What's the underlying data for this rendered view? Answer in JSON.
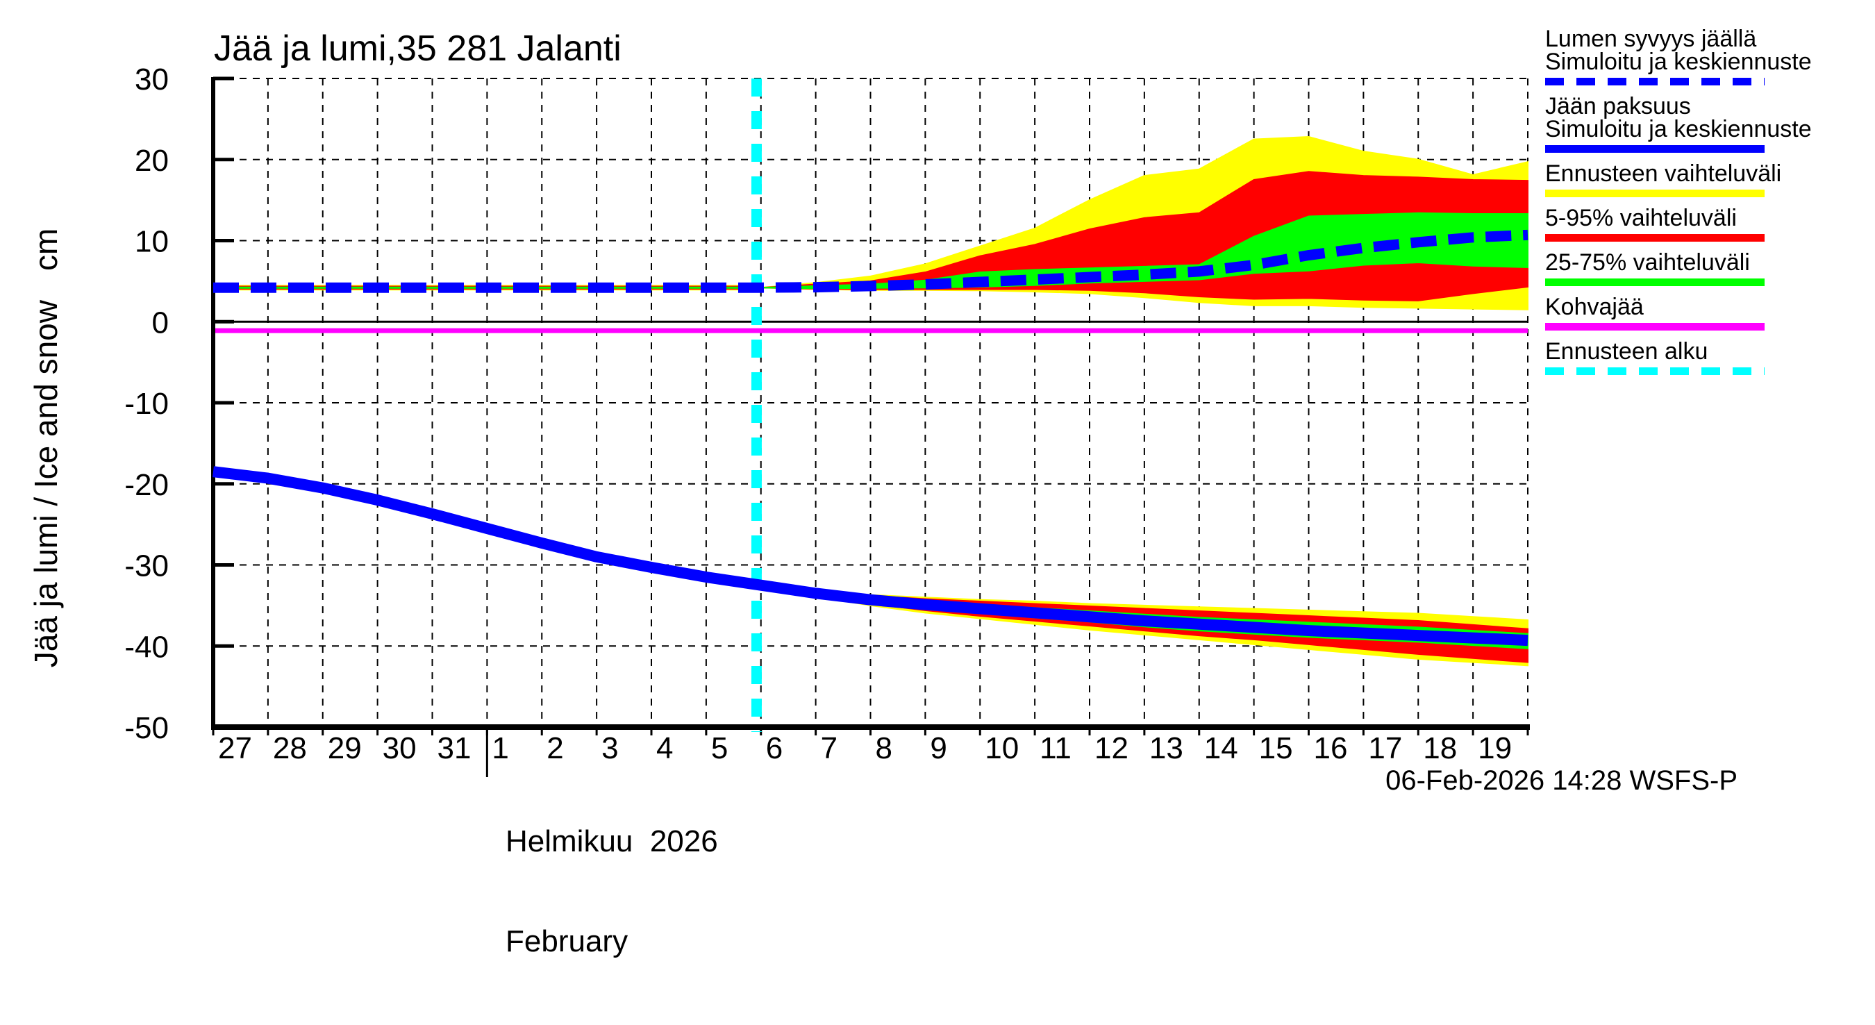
{
  "chart_data": {
    "type": "line",
    "title": "Jää ja lumi,35 281 Jalanti",
    "ylabel": "Jää ja lumi / Ice and snow",
    "y_unit": "cm",
    "ylim": [
      -50,
      30
    ],
    "y_ticks": [
      30,
      20,
      10,
      0,
      -10,
      -20,
      -30,
      -40,
      -50
    ],
    "x_day_labels": [
      "27",
      "28",
      "29",
      "30",
      "31",
      "1",
      "2",
      "3",
      "4",
      "5",
      "6",
      "7",
      "8",
      "9",
      "10",
      "11",
      "12",
      "13",
      "14",
      "15",
      "16",
      "17",
      "18",
      "19"
    ],
    "x_total_days": 24,
    "month_boundary_index": 5,
    "month_label_fi": "Helmikuu  2026",
    "month_label_en": "February",
    "forecast_start_t": 9.92,
    "timestamp": "06-Feb-2026 14:28 WSFS-P",
    "grid": true,
    "legend_position": "right-outside",
    "colors": {
      "median_line": "#0000ff",
      "range_full": "#ffff00",
      "range_5_95": "#ff0000",
      "range_25_75": "#00ff00",
      "kohvajaa": "#ff00ff",
      "forecast_start": "#00ffff",
      "axis": "#000000",
      "background": "#ffffff"
    },
    "series": {
      "t_history": [
        0,
        1,
        2,
        3,
        4,
        5,
        6,
        7,
        8,
        9,
        10
      ],
      "snow_depth_history": [
        4.2,
        4.2,
        4.2,
        4.2,
        4.2,
        4.2,
        4.2,
        4.2,
        4.2,
        4.2,
        4.2
      ],
      "ice_thickness_history": [
        -18.5,
        -19.3,
        -20.5,
        -22.0,
        -23.7,
        -25.5,
        -27.3,
        -29.0,
        -30.3,
        -31.5,
        -32.5
      ],
      "t_forecast": [
        10,
        11,
        12,
        13,
        14,
        15,
        16,
        17,
        18,
        19,
        20,
        21,
        22,
        23,
        24
      ],
      "snow_depth_median": [
        4.2,
        4.25,
        4.4,
        4.6,
        4.9,
        5.2,
        5.5,
        5.8,
        6.2,
        7.0,
        8.2,
        9.1,
        9.8,
        10.4,
        10.7
      ],
      "snow_full_hi": [
        4.2,
        4.8,
        5.6,
        7.1,
        9.3,
        11.5,
        15.0,
        18.0,
        18.8,
        22.5,
        22.8,
        21.0,
        20.0,
        18.1,
        19.7
      ],
      "snow_full_lo": [
        4.2,
        4.0,
        3.9,
        3.9,
        3.85,
        3.7,
        3.5,
        3.0,
        2.4,
        2.0,
        2.0,
        1.8,
        1.7,
        1.6,
        1.5
      ],
      "snow_p5_95_hi": [
        4.2,
        4.6,
        5.0,
        6.1,
        8.1,
        9.5,
        11.4,
        12.8,
        13.4,
        17.5,
        18.5,
        18.0,
        17.8,
        17.5,
        17.4
      ],
      "snow_p5_95_lo": [
        4.2,
        4.05,
        4.0,
        4.0,
        4.0,
        4.0,
        3.9,
        3.6,
        3.1,
        2.8,
        2.9,
        2.7,
        2.6,
        3.5,
        4.3
      ],
      "snow_p25_75_hi": [
        4.2,
        4.4,
        4.6,
        5.1,
        6.1,
        6.4,
        6.6,
        6.8,
        7.0,
        10.5,
        13.0,
        13.2,
        13.4,
        13.3,
        13.3
      ],
      "snow_p25_75_lo": [
        4.2,
        4.1,
        4.15,
        4.2,
        4.3,
        4.5,
        4.8,
        5.0,
        5.2,
        6.0,
        6.3,
        7.0,
        7.3,
        6.9,
        6.7
      ],
      "ice_median": [
        -32.5,
        -33.5,
        -34.3,
        -34.9,
        -35.4,
        -35.9,
        -36.4,
        -36.9,
        -37.3,
        -37.7,
        -38.1,
        -38.4,
        -38.7,
        -39.0,
        -39.3
      ],
      "ice_full_hi": [
        -32.5,
        -33.2,
        -33.7,
        -34.0,
        -34.3,
        -34.5,
        -34.8,
        -35.0,
        -35.2,
        -35.4,
        -35.6,
        -35.8,
        -36.0,
        -36.4,
        -36.8
      ],
      "ice_full_lo": [
        -32.5,
        -33.9,
        -35.0,
        -35.9,
        -36.6,
        -37.3,
        -38.0,
        -38.6,
        -39.2,
        -39.8,
        -40.4,
        -41.0,
        -41.6,
        -42.0,
        -42.4
      ],
      "ice_p5_95_hi": [
        -32.5,
        -33.3,
        -33.8,
        -34.2,
        -34.5,
        -34.8,
        -35.1,
        -35.4,
        -35.7,
        -36.0,
        -36.3,
        -36.6,
        -36.9,
        -37.4,
        -37.9
      ],
      "ice_p5_95_lo": [
        -32.5,
        -33.8,
        -34.8,
        -35.6,
        -36.3,
        -36.9,
        -37.5,
        -38.1,
        -38.7,
        -39.2,
        -39.8,
        -40.4,
        -41.0,
        -41.5,
        -42.0
      ],
      "ice_p25_75_hi": [
        -32.5,
        -33.4,
        -34.0,
        -34.5,
        -34.9,
        -35.3,
        -35.7,
        -36.1,
        -36.5,
        -36.8,
        -37.1,
        -37.4,
        -37.7,
        -38.1,
        -38.5
      ],
      "ice_p25_75_lo": [
        -32.5,
        -33.6,
        -34.6,
        -35.3,
        -35.9,
        -36.5,
        -37.0,
        -37.6,
        -38.1,
        -38.5,
        -38.9,
        -39.2,
        -39.5,
        -39.9,
        -40.3
      ],
      "kohvajaa_value": -1.1
    },
    "legend": [
      {
        "lines": [
          "Lumen syvyys jäällä",
          "Simuloitu ja keskiennuste"
        ],
        "color": "#0000ff",
        "style": "dashed"
      },
      {
        "lines": [
          "Jään paksuus",
          "Simuloitu ja keskiennuste"
        ],
        "color": "#0000ff",
        "style": "solid"
      },
      {
        "lines": [
          "Ennusteen vaihteluväli"
        ],
        "color": "#ffff00",
        "style": "solid"
      },
      {
        "lines": [
          "5-95% vaihteluväli"
        ],
        "color": "#ff0000",
        "style": "solid"
      },
      {
        "lines": [
          "25-75% vaihteluväli"
        ],
        "color": "#00ff00",
        "style": "solid"
      },
      {
        "lines": [
          "Kohvajää"
        ],
        "color": "#ff00ff",
        "style": "solid"
      },
      {
        "lines": [
          "Ennusteen alku"
        ],
        "color": "#00ffff",
        "style": "dashed"
      }
    ]
  }
}
